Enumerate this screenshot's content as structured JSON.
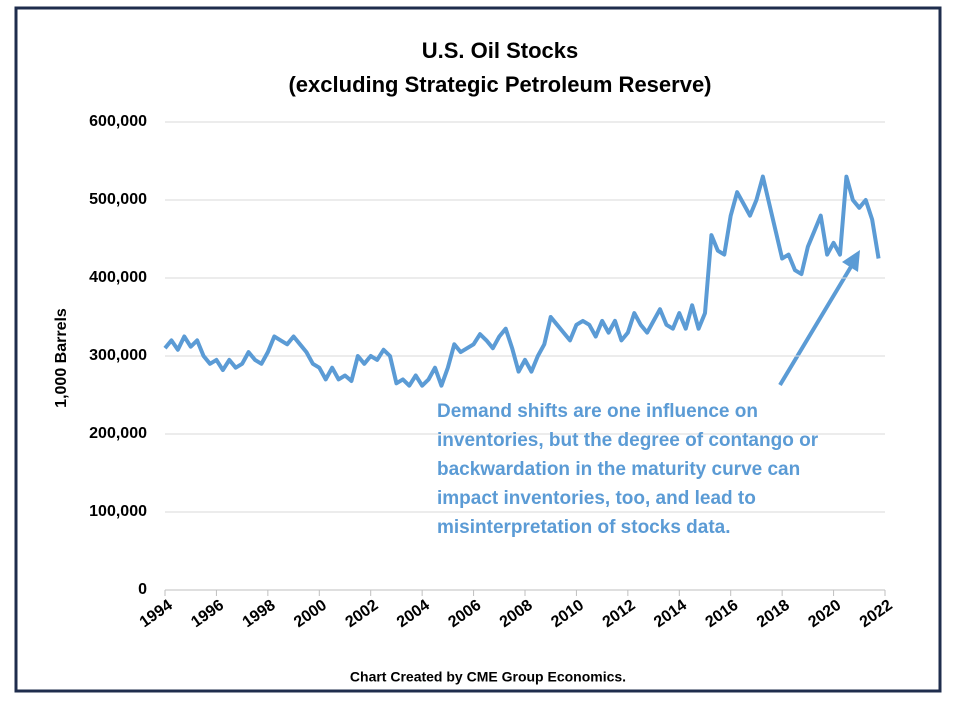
{
  "chart_data": {
    "type": "line",
    "title": [
      "U.S. Oil Stocks",
      "(excluding Strategic Petroleum Reserve)"
    ],
    "y_label": "1,000 Barrels",
    "footer": "Chart Created by CME Group Economics.",
    "annotation": [
      "Demand shifts are one influence on",
      "inventories, but the degree of contango or",
      "backwardation in the maturity curve can",
      "impact inventories, too, and lead to",
      "misinterpretation of stocks data."
    ],
    "x": [
      1994.0,
      1994.25,
      1994.5,
      1994.75,
      1995.0,
      1995.25,
      1995.5,
      1995.75,
      1996.0,
      1996.25,
      1996.5,
      1996.75,
      1997.0,
      1997.25,
      1997.5,
      1997.75,
      1998.0,
      1998.25,
      1998.5,
      1998.75,
      1999.0,
      1999.25,
      1999.5,
      1999.75,
      2000.0,
      2000.25,
      2000.5,
      2000.75,
      2001.0,
      2001.25,
      2001.5,
      2001.75,
      2002.0,
      2002.25,
      2002.5,
      2002.75,
      2003.0,
      2003.25,
      2003.5,
      2003.75,
      2004.0,
      2004.25,
      2004.5,
      2004.75,
      2005.0,
      2005.25,
      2005.5,
      2005.75,
      2006.0,
      2006.25,
      2006.5,
      2006.75,
      2007.0,
      2007.25,
      2007.5,
      2007.75,
      2008.0,
      2008.25,
      2008.5,
      2008.75,
      2009.0,
      2009.25,
      2009.5,
      2009.75,
      2010.0,
      2010.25,
      2010.5,
      2010.75,
      2011.0,
      2011.25,
      2011.5,
      2011.75,
      2012.0,
      2012.25,
      2012.5,
      2012.75,
      2013.0,
      2013.25,
      2013.5,
      2013.75,
      2014.0,
      2014.25,
      2014.5,
      2014.75,
      2015.0,
      2015.25,
      2015.5,
      2015.75,
      2016.0,
      2016.25,
      2016.5,
      2016.75,
      2017.0,
      2017.25,
      2017.5,
      2017.75,
      2018.0,
      2018.25,
      2018.5,
      2018.75,
      2019.0,
      2019.25,
      2019.5,
      2019.75,
      2020.0,
      2020.25,
      2020.5,
      2020.75,
      2021.0,
      2021.25,
      2021.5,
      2021.75
    ],
    "series": [
      {
        "name": "U.S. Oil Stocks",
        "color": "#5b9bd5",
        "values": [
          310000,
          320000,
          308000,
          325000,
          312000,
          320000,
          300000,
          290000,
          295000,
          282000,
          295000,
          285000,
          290000,
          305000,
          295000,
          290000,
          305000,
          325000,
          320000,
          315000,
          325000,
          315000,
          305000,
          290000,
          285000,
          270000,
          285000,
          270000,
          275000,
          268000,
          300000,
          290000,
          300000,
          295000,
          308000,
          300000,
          265000,
          270000,
          262000,
          275000,
          262000,
          270000,
          285000,
          262000,
          285000,
          315000,
          305000,
          310000,
          315000,
          328000,
          320000,
          310000,
          325000,
          335000,
          310000,
          280000,
          295000,
          280000,
          300000,
          315000,
          350000,
          340000,
          330000,
          320000,
          340000,
          345000,
          340000,
          325000,
          345000,
          330000,
          345000,
          320000,
          330000,
          355000,
          340000,
          330000,
          345000,
          360000,
          340000,
          335000,
          355000,
          335000,
          365000,
          335000,
          355000,
          455000,
          435000,
          430000,
          480000,
          510000,
          495000,
          480000,
          500000,
          530000,
          495000,
          460000,
          425000,
          430000,
          410000,
          405000,
          440000,
          460000,
          480000,
          430000,
          445000,
          430000,
          530000,
          500000,
          490000,
          500000,
          475000,
          425000
        ]
      }
    ],
    "xlim": [
      1994,
      2022
    ],
    "xticks": [
      1994,
      1996,
      1998,
      2000,
      2002,
      2004,
      2006,
      2008,
      2010,
      2012,
      2014,
      2016,
      2018,
      2020,
      2022
    ],
    "ylim": [
      0,
      600000
    ],
    "yticks": [
      0,
      {
        "value": 100000,
        "label": "100,000"
      },
      {
        "value": 200000,
        "label": "200,000"
      },
      {
        "value": 300000,
        "label": "300,000"
      },
      {
        "value": 400000,
        "label": "400,000"
      },
      {
        "value": 500000,
        "label": "500,000"
      },
      {
        "value": 600000,
        "label": "600,000"
      }
    ],
    "grid": true
  }
}
